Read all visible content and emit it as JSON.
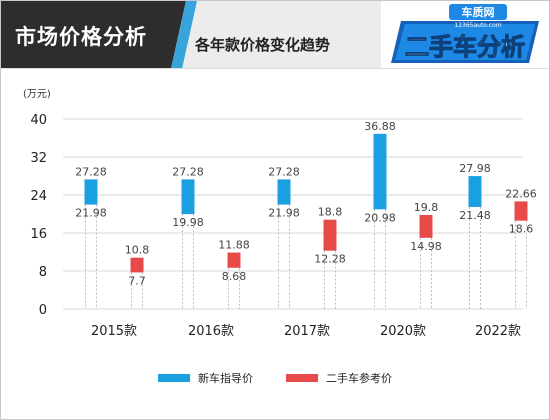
{
  "header": {
    "title": "市场价格分析",
    "subtitle": "各年款价格变化趋势"
  },
  "logo": {
    "site": "车质网",
    "domain": "12365auto.com",
    "slogan": "二手车分析"
  },
  "colors": {
    "new_price": "#1a9fe0",
    "used_price": "#e84a4a",
    "header_dark": "#2d2d2d",
    "header_accent": "#37a5dc"
  },
  "chart_data": {
    "type": "bar",
    "subtype": "floating-range",
    "unit": "(万元)",
    "ylim": [
      0,
      40
    ],
    "yticks": [
      0,
      8,
      16,
      24,
      32,
      40
    ],
    "grid": true,
    "legend_position": "bottom",
    "categories": [
      "2015款",
      "2016款",
      "2017款",
      "2020款",
      "2022款"
    ],
    "series": [
      {
        "name": "新车指导价",
        "color": "#1a9fe0",
        "low": [
          21.98,
          19.98,
          21.98,
          20.98,
          21.48
        ],
        "high": [
          27.28,
          27.28,
          27.28,
          36.88,
          27.98
        ],
        "low_labels": [
          "21.98",
          "19.98",
          "21.98",
          "20.98",
          "21.48"
        ],
        "high_labels": [
          "27.28",
          "27.28",
          "27.28",
          "36.88",
          "27.98"
        ]
      },
      {
        "name": "二手车参考价",
        "color": "#e84a4a",
        "low": [
          7.7,
          8.68,
          12.28,
          14.98,
          18.6
        ],
        "high": [
          10.8,
          11.88,
          18.8,
          19.8,
          22.66
        ],
        "low_labels": [
          "7.7",
          "8.68",
          "12.28",
          "14.98",
          "18.6"
        ],
        "high_labels": [
          "10.8",
          "11.88",
          "18.8",
          "19.8",
          "22.66"
        ]
      }
    ]
  }
}
